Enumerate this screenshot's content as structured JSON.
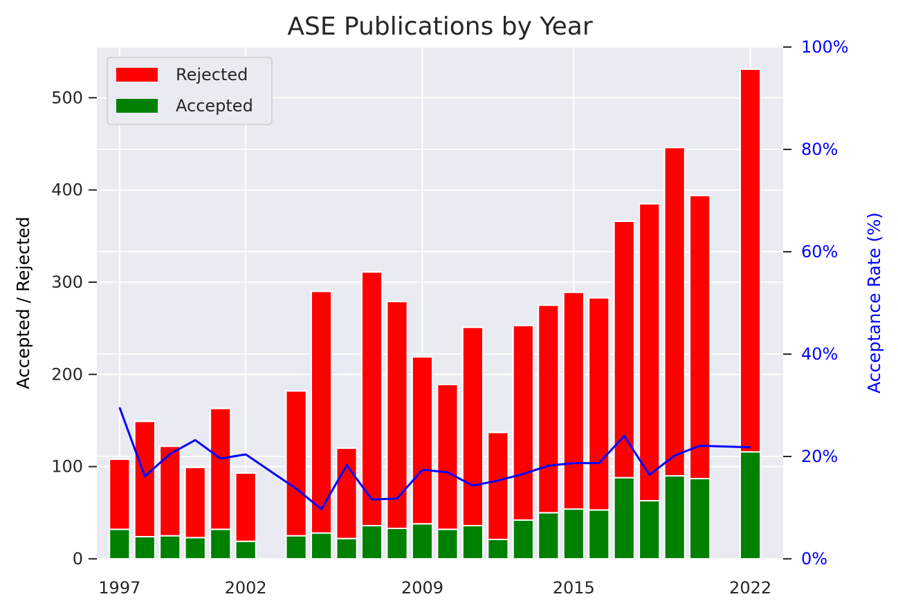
{
  "chart_data": {
    "type": "bar",
    "title": "ASE Publications by Year",
    "ylabel": "Accepted / Rejected",
    "ylabel_right": "Acceptance Rate (%)",
    "ylim": [
      0,
      555
    ],
    "ylim_right": [
      0,
      100
    ],
    "yticks": [
      "0",
      "100",
      "200",
      "300",
      "400",
      "500"
    ],
    "yticks_right": [
      "0%",
      "20%",
      "40%",
      "60%",
      "80%",
      "100%"
    ],
    "xticks": [
      "1997",
      "2002",
      "2009",
      "2015",
      "2022"
    ],
    "xtick_years": [
      1997,
      2002,
      2009,
      2015,
      2022
    ],
    "xlim": [
      1996.1,
      2023.3
    ],
    "grid": true,
    "legend_position": "top-left",
    "colors": {
      "rejected": "#ff0000",
      "accepted": "#008000",
      "rate_line": "#0000ff",
      "plot_bg": "#eaeaf2",
      "grid": "#ffffff"
    },
    "years": [
      1997,
      1998,
      1999,
      2000,
      2001,
      2002,
      2004,
      2005,
      2006,
      2007,
      2008,
      2009,
      2010,
      2011,
      2012,
      2013,
      2014,
      2015,
      2016,
      2017,
      2018,
      2019,
      2020,
      2022
    ],
    "series": [
      {
        "name": "Accepted",
        "values": [
          32,
          24,
          25,
          23,
          32,
          19,
          25,
          28,
          22,
          36,
          33,
          38,
          32,
          36,
          21,
          42,
          50,
          54,
          53,
          88,
          63,
          90,
          87,
          116
        ]
      },
      {
        "name": "Rejected",
        "values": [
          76,
          125,
          97,
          76,
          131,
          74,
          157,
          262,
          98,
          275,
          246,
          181,
          157,
          215,
          116,
          211,
          225,
          235,
          230,
          278,
          322,
          356,
          307,
          415
        ]
      }
    ],
    "acceptance_rate": [
      29.6,
      16.1,
      20.5,
      23.2,
      19.6,
      20.4,
      13.7,
      9.7,
      18.3,
      11.6,
      11.8,
      17.4,
      16.9,
      14.3,
      15.3,
      16.6,
      18.2,
      18.7,
      18.7,
      24.0,
      16.4,
      20.2,
      22.1,
      21.8
    ]
  }
}
